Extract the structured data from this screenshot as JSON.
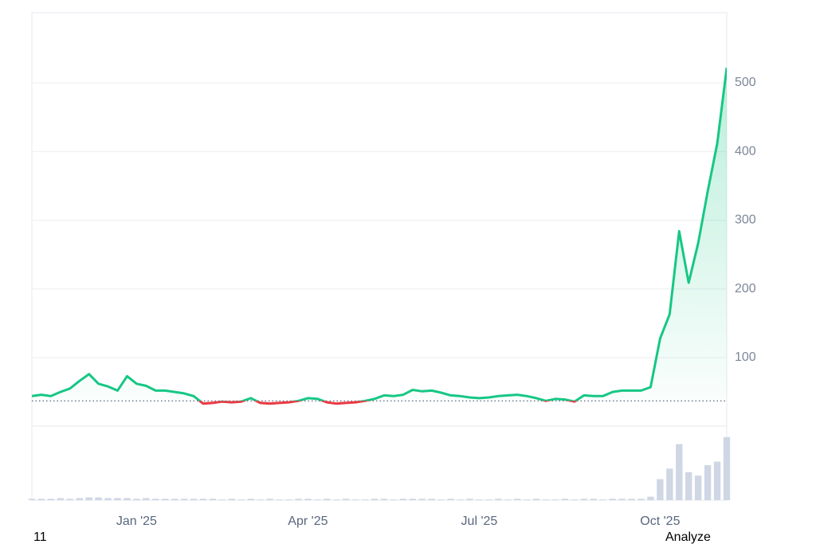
{
  "chart_data": {
    "type": "line",
    "categories": [
      null,
      null,
      null,
      null,
      null,
      null,
      null,
      null,
      null,
      null,
      null,
      "Jan '25",
      null,
      null,
      null,
      null,
      null,
      null,
      null,
      null,
      null,
      null,
      null,
      null,
      null,
      null,
      null,
      null,
      null,
      "Apr '25",
      null,
      null,
      null,
      null,
      null,
      null,
      null,
      null,
      null,
      null,
      null,
      null,
      null,
      null,
      null,
      null,
      null,
      "Jul '25",
      null,
      null,
      null,
      null,
      null,
      null,
      null,
      null,
      null,
      null,
      null,
      null,
      null,
      null,
      null,
      null,
      null,
      null,
      "Oct '25",
      null,
      null,
      null,
      null,
      null,
      null,
      null
    ],
    "series": [
      {
        "color": "#16c784",
        "below_color": "#ea3943",
        "values": [
          44,
          46,
          44,
          50,
          55,
          66,
          76,
          62,
          58,
          52,
          73,
          62,
          59,
          52,
          52,
          50,
          48,
          44,
          33,
          34,
          36,
          35,
          36,
          41,
          34,
          33,
          34,
          35,
          37,
          41,
          40,
          35,
          33,
          34,
          35,
          37,
          40,
          45,
          44,
          46,
          53,
          51,
          52,
          49,
          45,
          44,
          42,
          41,
          42,
          44,
          45,
          46,
          44,
          41,
          37,
          40,
          39,
          36,
          45,
          44,
          44,
          50,
          52,
          52,
          52,
          57,
          128,
          163,
          284,
          209,
          267,
          342,
          412,
          522
        ]
      }
    ],
    "volume": {
      "color": "#cfd6e4",
      "ylim": [
        0,
        100
      ],
      "values": [
        2,
        2,
        2,
        3,
        2,
        3,
        4,
        4,
        3,
        3,
        3,
        2,
        3,
        2,
        2,
        2,
        2,
        2,
        2,
        2,
        1,
        2,
        1,
        2,
        1,
        2,
        1,
        1,
        2,
        2,
        1,
        2,
        1,
        2,
        1,
        1,
        2,
        2,
        1,
        2,
        2,
        2,
        2,
        1,
        2,
        1,
        2,
        1,
        1,
        2,
        1,
        2,
        1,
        2,
        1,
        1,
        2,
        1,
        2,
        2,
        1,
        2,
        2,
        2,
        2,
        5,
        30,
        45,
        80,
        40,
        35,
        50,
        55,
        90
      ]
    },
    "baseline": 37,
    "ylim": [
      0,
      600
    ],
    "yticks": [
      100,
      200,
      300,
      400,
      500
    ],
    "grid": true,
    "footer_left": "11",
    "footer_right": "Analyze"
  }
}
